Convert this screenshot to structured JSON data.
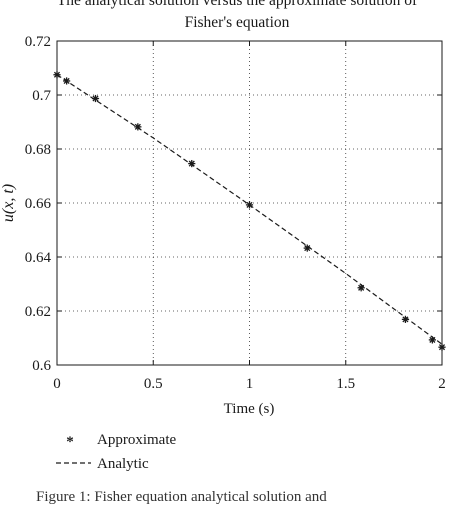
{
  "chart_data": {
    "type": "line",
    "title_lines": [
      "The analytical solution versus the approximate solution of",
      "Fisher's equation"
    ],
    "xlabel": "Time (s)",
    "ylabel": "u(x, t)",
    "xlim": [
      0,
      2
    ],
    "ylim": [
      0.6,
      0.72
    ],
    "xticks": [
      0,
      0.5,
      1,
      1.5,
      2
    ],
    "xtick_labels": [
      "0",
      "0.5",
      "1",
      "1.5",
      "2"
    ],
    "yticks": [
      0.6,
      0.62,
      0.64,
      0.66,
      0.68,
      0.7,
      0.72
    ],
    "ytick_labels": [
      "0.6",
      "0.62",
      "0.64",
      "0.66",
      "0.68",
      "0.7",
      "0.72"
    ],
    "grid": true,
    "legend_position": "below-left",
    "series": [
      {
        "name": "Approximate",
        "style": "star-markers",
        "color": "#1a1a1a",
        "x": [
          0,
          0.05,
          0.2,
          0.42,
          0.7,
          1.0,
          1.3,
          1.58,
          1.81,
          1.95,
          2.0
        ],
        "y": [
          0.7075,
          0.7052,
          0.6987,
          0.6882,
          0.6746,
          0.6593,
          0.6433,
          0.6286,
          0.6169,
          0.6093,
          0.6066
        ]
      },
      {
        "name": "Analytic",
        "style": "dashed-line",
        "color": "#1a1a1a",
        "x": [
          0,
          0.5,
          1.0,
          1.5,
          2.0
        ],
        "y": [
          0.7075,
          0.6841,
          0.6593,
          0.6339,
          0.6077
        ]
      }
    ]
  },
  "caption": "Figure 1: Fisher equation analytical solution and"
}
